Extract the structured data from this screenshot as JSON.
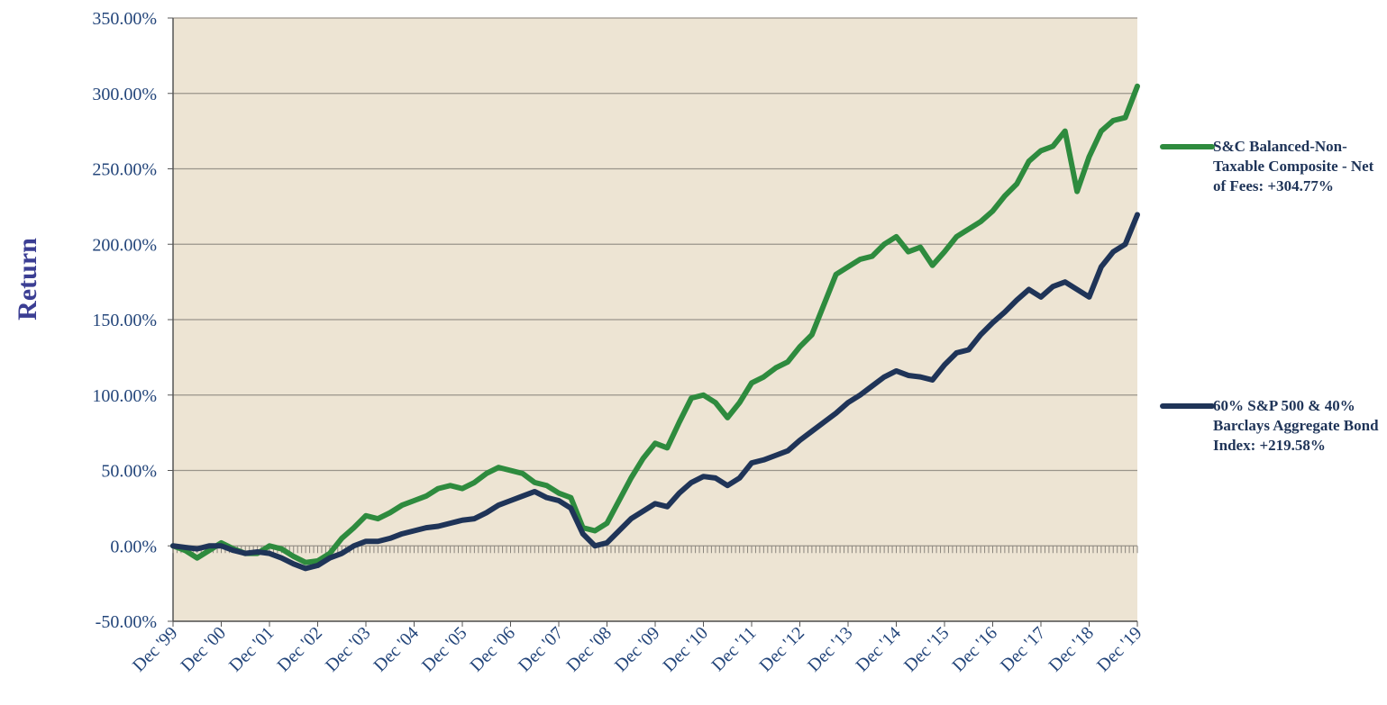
{
  "chart_data": {
    "type": "line",
    "y_label": "Return",
    "categories": [
      "Dec '99",
      null,
      null,
      null,
      "Dec '00",
      null,
      null,
      null,
      "Dec '01",
      null,
      null,
      null,
      "Dec '02",
      null,
      null,
      null,
      "Dec '03",
      null,
      null,
      null,
      "Dec '04",
      null,
      null,
      null,
      "Dec '05",
      null,
      null,
      null,
      "Dec '06",
      null,
      null,
      null,
      "Dec '07",
      null,
      null,
      null,
      "Dec '08",
      null,
      null,
      null,
      "Dec '09",
      null,
      null,
      null,
      "Dec '10",
      null,
      null,
      null,
      "Dec '11",
      null,
      null,
      null,
      "Dec '12",
      null,
      null,
      null,
      "Dec '13",
      null,
      null,
      null,
      "Dec '14",
      null,
      null,
      null,
      "Dec '15",
      null,
      null,
      null,
      "Dec '16",
      null,
      null,
      null,
      "Dec '17",
      null,
      null,
      null,
      "Dec '18",
      null,
      null,
      null,
      "Dec '19"
    ],
    "series": [
      {
        "name": "S&C Balanced-Non-Taxable Composite - Net of Fees: +304.77%",
        "color": "#2e8b3e",
        "values": [
          0,
          -3,
          -8,
          -3,
          2,
          -2,
          -5,
          -5,
          0,
          -2,
          -7,
          -11,
          -10,
          -5,
          5,
          12,
          20,
          18,
          22,
          27,
          30,
          33,
          38,
          40,
          38,
          42,
          48,
          52,
          50,
          48,
          42,
          40,
          35,
          32,
          12,
          10,
          15,
          30,
          45,
          58,
          68,
          65,
          82,
          98,
          100,
          95,
          85,
          95,
          108,
          112,
          118,
          122,
          132,
          140,
          160,
          180,
          185,
          190,
          192,
          200,
          205,
          195,
          198,
          186,
          195,
          205,
          210,
          215,
          222,
          232,
          240,
          255,
          262,
          265,
          275,
          235,
          258,
          275,
          282,
          284,
          304.77
        ]
      },
      {
        "name": "60% S&P 500 & 40% Barclays Aggregate Bond Index: +219.58%",
        "color": "#1f3458",
        "values": [
          0,
          -1,
          -2,
          0,
          0,
          -3,
          -5,
          -4,
          -5,
          -8,
          -12,
          -15,
          -13,
          -8,
          -5,
          0,
          3,
          3,
          5,
          8,
          10,
          12,
          13,
          15,
          17,
          18,
          22,
          27,
          30,
          33,
          36,
          32,
          30,
          25,
          8,
          0,
          2,
          10,
          18,
          23,
          28,
          26,
          35,
          42,
          46,
          45,
          40,
          45,
          55,
          57,
          60,
          63,
          70,
          76,
          82,
          88,
          95,
          100,
          106,
          112,
          116,
          113,
          112,
          110,
          120,
          128,
          130,
          140,
          148,
          155,
          163,
          170,
          165,
          172,
          175,
          170,
          165,
          185,
          195,
          200,
          219.58
        ]
      }
    ],
    "ylim": [
      -50,
      350
    ],
    "yticks": [
      {
        "value": -50,
        "label": "-50.00%"
      },
      {
        "value": 0,
        "label": "0.00%"
      },
      {
        "value": 50,
        "label": "50.00%"
      },
      {
        "value": 100,
        "label": "100.00%"
      },
      {
        "value": 150,
        "label": "150.00%"
      },
      {
        "value": 200,
        "label": "200.00%"
      },
      {
        "value": 250,
        "label": "250.00%"
      },
      {
        "value": 300,
        "label": "300.00%"
      },
      {
        "value": 350,
        "label": "350.00%"
      }
    ],
    "grid": true,
    "legend": "right"
  }
}
